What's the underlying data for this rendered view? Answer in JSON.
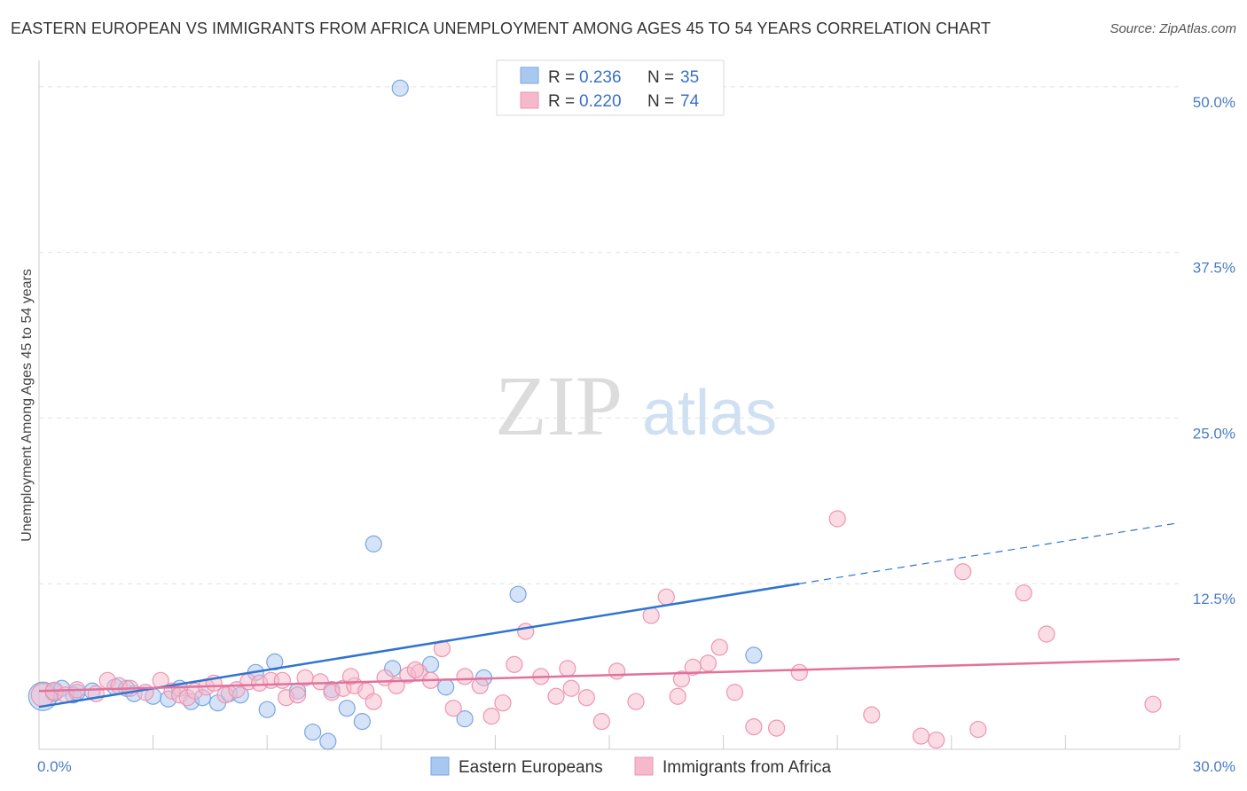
{
  "chart_data": {
    "type": "scatter",
    "title": "EASTERN EUROPEAN VS IMMIGRANTS FROM AFRICA UNEMPLOYMENT AMONG AGES 45 TO 54 YEARS CORRELATION CHART",
    "source": "Source: ZipAtlas.com",
    "ylabel": "Unemployment Among Ages 45 to 54 years",
    "xlim": [
      0,
      30
    ],
    "ylim": [
      0,
      52
    ],
    "x_tick_labels": {
      "min": "0.0%",
      "max": "30.0%"
    },
    "y_ticks": [
      {
        "value": 12.5,
        "label": "12.5%"
      },
      {
        "value": 25.0,
        "label": "25.0%"
      },
      {
        "value": 37.5,
        "label": "37.5%"
      },
      {
        "value": 50.0,
        "label": "50.0%"
      }
    ],
    "watermark": {
      "zip": "ZIP",
      "atlas": "atlas"
    },
    "legend": [
      {
        "r_label": "R =",
        "r_value": "0.236",
        "n_label": "N =",
        "n_value": "35"
      },
      {
        "r_label": "R =",
        "r_value": "0.220",
        "n_label": "N =",
        "n_value": "74"
      }
    ],
    "series": [
      {
        "name": "Eastern Europeans",
        "color": "#a9c8f0",
        "stroke": "#7aa6e0",
        "line_color": "#2f74d0",
        "trend": {
          "x0": 0,
          "y0": 3.2,
          "x1": 20,
          "y1": 12.5,
          "dash_to_x": 30,
          "dash_to_y": 17.1
        },
        "points": [
          [
            0.1,
            4.0,
            16
          ],
          [
            0.4,
            4.3,
            10
          ],
          [
            0.6,
            4.6,
            9
          ],
          [
            0.9,
            4.1,
            9
          ],
          [
            1.4,
            4.4,
            9
          ],
          [
            2.0,
            4.7,
            9
          ],
          [
            2.5,
            4.2,
            9
          ],
          [
            3.0,
            4.0,
            9
          ],
          [
            3.4,
            3.8,
            9
          ],
          [
            3.7,
            4.6,
            9
          ],
          [
            4.0,
            3.6,
            9
          ],
          [
            4.3,
            3.9,
            9
          ],
          [
            4.7,
            3.5,
            9
          ],
          [
            5.0,
            4.2,
            9
          ],
          [
            5.3,
            4.1,
            9
          ],
          [
            5.7,
            5.8,
            9
          ],
          [
            6.0,
            3.0,
            9
          ],
          [
            6.2,
            6.6,
            9
          ],
          [
            6.8,
            4.4,
            9
          ],
          [
            7.2,
            1.3,
            9
          ],
          [
            7.6,
            0.6,
            9
          ],
          [
            7.7,
            4.5,
            9
          ],
          [
            8.1,
            3.1,
            9
          ],
          [
            8.5,
            2.1,
            9
          ],
          [
            8.8,
            15.5,
            9
          ],
          [
            9.3,
            6.1,
            9
          ],
          [
            9.5,
            49.9,
            9
          ],
          [
            10.3,
            6.4,
            9
          ],
          [
            10.7,
            4.7,
            9
          ],
          [
            11.2,
            2.3,
            9
          ],
          [
            11.7,
            5.4,
            9
          ],
          [
            12.6,
            11.7,
            9
          ],
          [
            18.8,
            7.1,
            9
          ],
          [
            2.3,
            4.6,
            9
          ],
          [
            1.0,
            4.3,
            9
          ]
        ]
      },
      {
        "name": "Immigrants from Africa",
        "color": "#f6b9cc",
        "stroke": "#ee94b1",
        "line_color": "#e2719b",
        "trend": {
          "x0": 0,
          "y0": 4.4,
          "x1": 30,
          "y1": 6.8
        },
        "points": [
          [
            0.1,
            4.1,
            13
          ],
          [
            0.4,
            4.4,
            10
          ],
          [
            0.7,
            4.1,
            9
          ],
          [
            1.0,
            4.5,
            9
          ],
          [
            1.5,
            4.2,
            9
          ],
          [
            1.8,
            5.2,
            9
          ],
          [
            2.1,
            4.8,
            9
          ],
          [
            2.4,
            4.6,
            9
          ],
          [
            2.8,
            4.3,
            9
          ],
          [
            3.2,
            5.2,
            9
          ],
          [
            3.5,
            4.4,
            9
          ],
          [
            3.7,
            4.1,
            9
          ],
          [
            3.9,
            3.9,
            9
          ],
          [
            4.1,
            4.4,
            9
          ],
          [
            4.4,
            4.7,
            9
          ],
          [
            4.6,
            5.0,
            9
          ],
          [
            4.9,
            4.1,
            9
          ],
          [
            5.2,
            4.5,
            9
          ],
          [
            5.5,
            5.1,
            9
          ],
          [
            5.8,
            5.0,
            9
          ],
          [
            6.1,
            5.2,
            9
          ],
          [
            6.5,
            3.9,
            9
          ],
          [
            6.8,
            4.1,
            9
          ],
          [
            7.0,
            5.4,
            9
          ],
          [
            7.4,
            5.1,
            9
          ],
          [
            7.7,
            4.3,
            9
          ],
          [
            8.0,
            4.6,
            9
          ],
          [
            8.3,
            4.8,
            9
          ],
          [
            8.6,
            4.4,
            9
          ],
          [
            8.8,
            3.6,
            9
          ],
          [
            9.1,
            5.4,
            9
          ],
          [
            9.4,
            4.8,
            9
          ],
          [
            9.7,
            5.6,
            9
          ],
          [
            10.0,
            5.8,
            9
          ],
          [
            10.3,
            5.2,
            9
          ],
          [
            10.6,
            7.6,
            9
          ],
          [
            10.9,
            3.1,
            9
          ],
          [
            11.2,
            5.5,
            9
          ],
          [
            11.6,
            4.8,
            9
          ],
          [
            11.9,
            2.5,
            9
          ],
          [
            12.2,
            3.5,
            9
          ],
          [
            12.5,
            6.4,
            9
          ],
          [
            12.8,
            8.9,
            9
          ],
          [
            13.2,
            5.5,
            9
          ],
          [
            13.6,
            4.0,
            9
          ],
          [
            14.0,
            4.6,
            9
          ],
          [
            14.4,
            3.9,
            9
          ],
          [
            14.8,
            2.1,
            9
          ],
          [
            15.2,
            5.9,
            9
          ],
          [
            15.7,
            3.6,
            9
          ],
          [
            16.1,
            10.1,
            9
          ],
          [
            16.5,
            11.5,
            9
          ],
          [
            16.8,
            4.0,
            9
          ],
          [
            17.2,
            6.2,
            9
          ],
          [
            17.6,
            6.5,
            9
          ],
          [
            17.9,
            7.7,
            9
          ],
          [
            18.3,
            4.3,
            9
          ],
          [
            18.8,
            1.7,
            9
          ],
          [
            19.4,
            1.6,
            9
          ],
          [
            20.0,
            5.8,
            9
          ],
          [
            21.0,
            17.4,
            9
          ],
          [
            21.9,
            2.6,
            9
          ],
          [
            23.2,
            1.0,
            9
          ],
          [
            23.6,
            0.7,
            9
          ],
          [
            24.3,
            13.4,
            9
          ],
          [
            24.7,
            1.5,
            9
          ],
          [
            25.9,
            11.8,
            9
          ],
          [
            26.5,
            8.7,
            9
          ],
          [
            29.3,
            3.4,
            9
          ],
          [
            16.9,
            5.3,
            9
          ],
          [
            9.9,
            6.0,
            9
          ],
          [
            13.9,
            6.1,
            9
          ],
          [
            6.4,
            5.2,
            9
          ],
          [
            8.2,
            5.5,
            9
          ]
        ]
      }
    ]
  }
}
